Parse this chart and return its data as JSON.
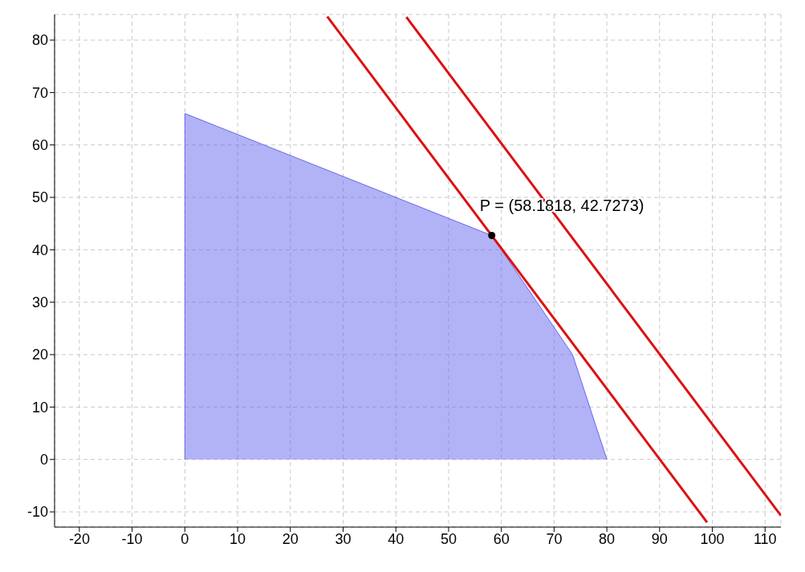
{
  "chart_data": {
    "type": "line",
    "xlim": [
      -24.7,
      113
    ],
    "ylim": [
      -12.9,
      84.9
    ],
    "xticks": [
      -20,
      -10,
      0,
      10,
      20,
      30,
      40,
      50,
      60,
      70,
      80,
      90,
      100,
      110
    ],
    "yticks": [
      -10,
      0,
      10,
      20,
      30,
      40,
      50,
      60,
      70,
      80
    ],
    "grid": true,
    "series": [
      {
        "type": "area",
        "color": "#6666ee",
        "x": [
          0,
          0,
          58.1818,
          73.5,
          80
        ],
        "values": [
          0,
          66,
          42.7273,
          20,
          0
        ]
      },
      {
        "color": "#dd1111",
        "x": [
          27,
          99
        ],
        "values": [
          84.5,
          -12
        ]
      },
      {
        "color": "#dd1111",
        "x": [
          42,
          113
        ],
        "values": [
          84.4,
          -10.7
        ]
      },
      {
        "type": "scatter",
        "color": "#000000",
        "x": [
          58.1818
        ],
        "values": [
          42.7273
        ]
      }
    ],
    "annotations": [
      {
        "text": "P = (58.1818, 42.7273)",
        "x": 58.1818,
        "y": 42.7273
      }
    ]
  }
}
